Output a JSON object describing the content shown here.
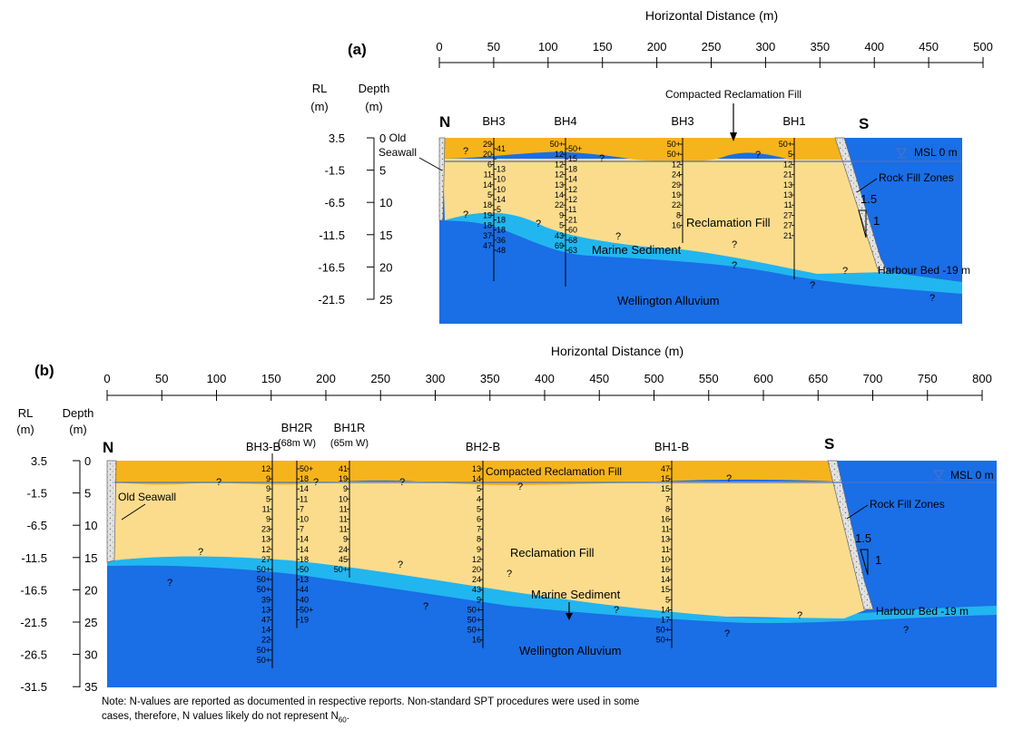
{
  "panel_a": {
    "label": "(a)",
    "axis_title": "Horizontal Distance (m)",
    "x_ticks": [
      "0",
      "50",
      "100",
      "150",
      "200",
      "250",
      "300",
      "350",
      "400",
      "450",
      "500"
    ],
    "rl_header": [
      "RL",
      "(m)"
    ],
    "depth_header": [
      "Depth",
      "(m)"
    ],
    "rl_ticks": [
      "3.5",
      "-1.5",
      "-6.5",
      "-11.5",
      "-16.5",
      "-21.5"
    ],
    "depth_ticks": [
      "0",
      "5",
      "10",
      "15",
      "20",
      "25"
    ],
    "north": "N",
    "south": "S",
    "old_seawall": [
      "Old",
      "Seawall"
    ],
    "compacted_fill": "Compacted Reclamation Fill",
    "msl": "MSL 0 m",
    "rock_fill": "Rock Fill Zones",
    "slope_h": "1.5",
    "slope_v": "1",
    "reclamation_fill": "Reclamation Fill",
    "marine_sediment": "Marine Sediment",
    "harbour_bed": "Harbour Bed -19 m",
    "alluvium": "Wellington Alluvium",
    "boreholes": [
      {
        "name": "BH3",
        "left": [
          "29",
          "20",
          "6",
          "11",
          "14",
          "5",
          "18",
          "19",
          "18",
          "37",
          "47"
        ],
        "right": [
          "41",
          "",
          "13",
          "10",
          "10",
          "14",
          "5",
          "18",
          "18",
          "36",
          "48"
        ]
      },
      {
        "name": "BH4",
        "left": [
          "50+",
          "12",
          "12",
          "12",
          "13",
          "14",
          "22",
          "9",
          "5",
          "43",
          "69"
        ],
        "right": [
          "50+",
          "15",
          "18",
          "14",
          "12",
          "12",
          "11",
          "21",
          "60",
          "68",
          "63"
        ]
      },
      {
        "name": "BH3",
        "left": [
          "50+",
          "50+",
          "12",
          "24",
          "29",
          "19",
          "22",
          "8",
          "16"
        ],
        "right": []
      },
      {
        "name": "BH1",
        "left": [
          "50+",
          "5",
          "12",
          "21",
          "13",
          "13",
          "11",
          "27",
          "27",
          "21"
        ],
        "right": []
      }
    ]
  },
  "panel_b": {
    "label": "(b)",
    "axis_title": "Horizontal Distance (m)",
    "x_ticks": [
      "0",
      "50",
      "100",
      "150",
      "200",
      "250",
      "300",
      "350",
      "400",
      "450",
      "500",
      "550",
      "600",
      "650",
      "700",
      "750",
      "800"
    ],
    "rl_header": [
      "RL",
      "(m)"
    ],
    "depth_header": [
      "Depth",
      "(m)"
    ],
    "rl_ticks": [
      "3.5",
      "-1.5",
      "-6.5",
      "-11.5",
      "-16.5",
      "-21.5",
      "-26.5",
      "-31.5"
    ],
    "depth_ticks": [
      "0",
      "5",
      "10",
      "15",
      "20",
      "25",
      "30",
      "35"
    ],
    "north": "N",
    "south": "S",
    "old_seawall": "Old Seawall",
    "compacted_fill": "Compacted Reclamation Fill",
    "msl": "MSL 0 m",
    "rock_fill": "Rock Fill Zones",
    "slope_h": "1.5",
    "slope_v": "1",
    "reclamation_fill": "Reclamation Fill",
    "marine_sediment": "Marine Sediment",
    "harbour_bed": "Harbour Bed -19 m",
    "alluvium": "Wellington Alluvium",
    "boreholes": [
      {
        "name": "BH3-B",
        "sub": "",
        "values": [
          "12",
          "9",
          "9",
          "5",
          "11",
          "9",
          "23",
          "13",
          "12",
          "27",
          "50+",
          "50+",
          "50+",
          "39",
          "13",
          "47",
          "14",
          "22",
          "50+",
          "50+"
        ]
      },
      {
        "name": "BH2R",
        "sub": "(68m W)",
        "values": [
          "50+",
          "18",
          "14",
          "11",
          "7",
          "10",
          "7",
          "14",
          "14",
          "18",
          "50",
          "13",
          "44",
          "40",
          "50+",
          "19"
        ]
      },
      {
        "name": "BH1R",
        "sub": "(65m W)",
        "values": [
          "41",
          "19",
          "9",
          "10",
          "11",
          "11",
          "11",
          "9",
          "24",
          "45",
          "50+"
        ]
      },
      {
        "name": "BH2-B",
        "sub": "",
        "values": [
          "13",
          "14",
          "5",
          "4",
          "5",
          "6",
          "7",
          "8",
          "9",
          "12",
          "20",
          "24",
          "43",
          "9",
          "50+",
          "50+",
          "50+",
          "16"
        ]
      },
      {
        "name": "BH1-B",
        "sub": "",
        "values": [
          "47",
          "15",
          "15",
          "7",
          "8",
          "16",
          "11",
          "13",
          "11",
          "10",
          "16",
          "14",
          "15",
          "5",
          "14",
          "17",
          "50+",
          "50+"
        ]
      }
    ]
  },
  "note": {
    "line1": "Note: N-values are reported as documented in respective reports. Non-standard SPT procedures were used in some",
    "line2": "cases, therefore, N values likely do not represent N",
    "line2_sub": "60",
    "line2_end": "."
  },
  "colors": {
    "compacted_fill": "#f5b41c",
    "reclamation_fill": "#fbdc8c",
    "marine_sediment": "#21b6ef",
    "alluvium": "#1a6ee6",
    "seawall": "#d7d7d7",
    "msl_line": "#4a72c4"
  }
}
